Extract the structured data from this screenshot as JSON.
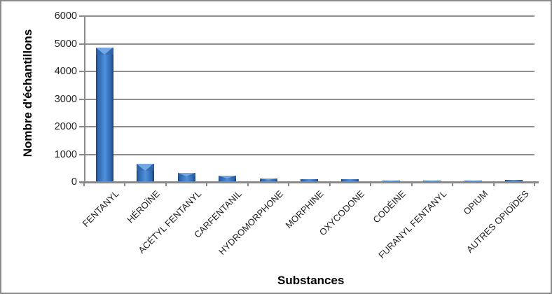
{
  "frame": {
    "background": "#ffffff",
    "border_color": "#8a8a8a"
  },
  "colors": {
    "gridline": "#8f8f8f",
    "axis": "#8a8a8a",
    "text": "#1f1f1f",
    "bar_main": "#5190da",
    "bar_edge": "#1a4474",
    "bar_cap_highlight": "#74a7e5"
  },
  "chart_data": {
    "type": "bar",
    "title": "",
    "xlabel": "Substances",
    "ylabel": "Nombre d'échantillons",
    "categories": [
      "FENTANYL",
      "HÉROÏNE",
      "ACÉTYL FENTANYL",
      "CARFENTANIL",
      "HYDROMORPHONE",
      "MORPHINE",
      "OXYCODONE",
      "CODÉINE",
      "FURANYL FENTANYL",
      "OPIUM",
      "AUTRES OPIOÏDES"
    ],
    "values": [
      4850,
      660,
      325,
      235,
      115,
      100,
      105,
      55,
      55,
      45,
      85
    ],
    "ylim": [
      0,
      6000
    ],
    "yticks": [
      0,
      1000,
      2000,
      3000,
      4000,
      5000,
      6000
    ],
    "grid": true,
    "legend": false,
    "x_label_rotation_deg": 45
  }
}
